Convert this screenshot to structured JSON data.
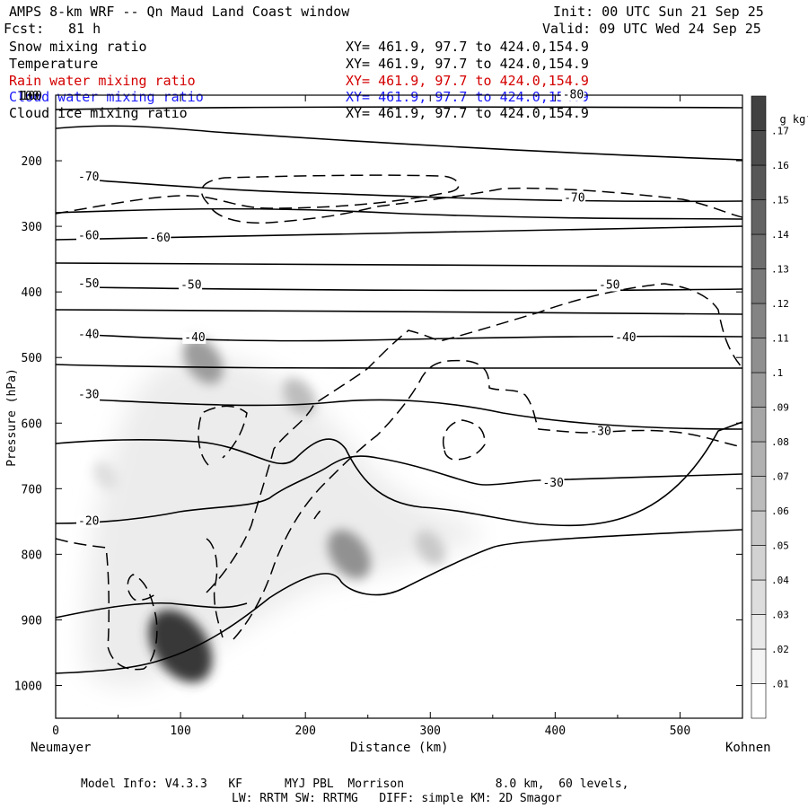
{
  "header": {
    "title": "AMPS 8-km WRF -- Qn Maud Land Coast window",
    "init": "Init: 00 UTC Sun 21 Sep 25",
    "fcst_label": "Fcst:",
    "fcst_value": "81 h",
    "valid": "Valid: 09 UTC Wed 24 Sep 25"
  },
  "fields": [
    {
      "name": "Snow mixing ratio",
      "xy": "XY= 461.9, 97.7 to 424.0,154.9",
      "color": "#000000"
    },
    {
      "name": "Temperature",
      "xy": "XY= 461.9, 97.7 to 424.0,154.9",
      "color": "#000000"
    },
    {
      "name": "Rain water mixing ratio",
      "xy": "XY= 461.9, 97.7 to 424.0,154.9",
      "color": "#d40000"
    },
    {
      "name": "Cloud water mixing ratio",
      "xy": "XY= 461.9, 97.7 to 424.0,154.9",
      "color": "#1a1aff"
    },
    {
      "name": "Cloud ice mixing ratio",
      "xy": "XY= 461.9, 97.7 to 424.0,154.9",
      "color": "#000000"
    }
  ],
  "chart_data": {
    "type": "heatmap",
    "title": "AMPS 8-km WRF -- Qn Maud Land Coast window",
    "xlabel": "Distance (km)",
    "ylabel": "Pressure (hPa)",
    "xlim": [
      0,
      550
    ],
    "ylim": [
      1050,
      100
    ],
    "x_ticks": [
      0,
      100,
      200,
      300,
      400,
      500
    ],
    "y_ticks": [
      100,
      200,
      300,
      400,
      500,
      600,
      700,
      800,
      900,
      1000
    ],
    "x_left_label": "Neumayer",
    "x_right_label": "Kohnen",
    "colorbar": {
      "unit": "g kg",
      "unit_sup": "-1",
      "levels": [
        0.01,
        0.02,
        0.03,
        0.04,
        0.05,
        0.06,
        0.07,
        0.08,
        0.09,
        0.1,
        0.11,
        0.12,
        0.13,
        0.14,
        0.15,
        0.16,
        0.17
      ],
      "labels": [
        ".01",
        ".02",
        ".03",
        ".04",
        ".05",
        ".06",
        ".07",
        ".08",
        ".09",
        ".1",
        ".11",
        ".12",
        ".13",
        ".14",
        ".15",
        ".16",
        ".17"
      ]
    },
    "snow_blobs": [
      {
        "x": 100,
        "p": 940,
        "value": 0.17
      },
      {
        "x": 118,
        "p": 505,
        "value": 0.08
      },
      {
        "x": 195,
        "p": 560,
        "value": 0.05
      },
      {
        "x": 235,
        "p": 800,
        "value": 0.09
      },
      {
        "x": 300,
        "p": 790,
        "value": 0.04
      },
      {
        "x": 40,
        "p": 680,
        "value": 0.02
      }
    ],
    "temperature_contour_labels": [
      {
        "x": 18,
        "p": 230,
        "text": "-70"
      },
      {
        "x": 18,
        "p": 320,
        "text": "-60"
      },
      {
        "x": 75,
        "p": 323,
        "text": "-60"
      },
      {
        "x": 18,
        "p": 393,
        "text": "-50"
      },
      {
        "x": 100,
        "p": 395,
        "text": "-50"
      },
      {
        "x": 18,
        "p": 470,
        "text": "-40"
      },
      {
        "x": 103,
        "p": 475,
        "text": "-40"
      },
      {
        "x": 18,
        "p": 562,
        "text": "-30"
      },
      {
        "x": 18,
        "p": 755,
        "text": "-20"
      },
      {
        "x": 407,
        "p": 262,
        "text": "-70"
      },
      {
        "x": 435,
        "p": 395,
        "text": "-50"
      },
      {
        "x": 448,
        "p": 475,
        "text": "-40"
      },
      {
        "x": 428,
        "p": 618,
        "text": "-30"
      },
      {
        "x": 390,
        "p": 697,
        "text": "-30"
      },
      {
        "x": 406,
        "p": 105,
        "text": "-80"
      }
    ],
    "overlap_label": "100"
  },
  "footer": {
    "line1": "Model Info: V4.3.3   KF      MYJ PBL  Morrison             8.0 km,  60 levels,",
    "line2": "LW: RRTM SW: RRTMG   DIFF: simple KM: 2D Smagor"
  }
}
